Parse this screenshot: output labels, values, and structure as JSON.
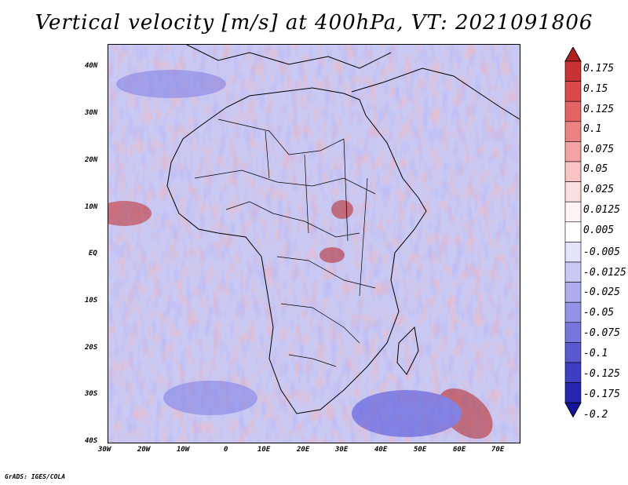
{
  "title": "Vertical velocity [m/s] at 400hPa, VT: 2021091806",
  "credit": "GrADS: IGES/COLA",
  "map": {
    "lon_range": [
      -30,
      75
    ],
    "lat_range": [
      -40,
      45
    ],
    "lat_ticks": [
      "40N",
      "30N",
      "20N",
      "10N",
      "EQ",
      "10S",
      "20S",
      "30S",
      "40S"
    ],
    "lon_ticks": [
      "30W",
      "20W",
      "10W",
      "0",
      "10E",
      "20E",
      "30E",
      "40E",
      "50E",
      "60E",
      "70E"
    ]
  },
  "colorbar": {
    "labels": [
      "0.175",
      "0.15",
      "0.125",
      "0.1",
      "0.075",
      "0.05",
      "0.025",
      "0.0125",
      "0.005",
      "-0.005",
      "-0.0125",
      "-0.025",
      "-0.05",
      "-0.075",
      "-0.1",
      "-0.125",
      "-0.175",
      "-0.2"
    ],
    "colors": [
      "#b21f1f",
      "#c73333",
      "#d94949",
      "#e46464",
      "#ec8282",
      "#f2a3a3",
      "#f7c3c3",
      "#fbdede",
      "#fff3f3",
      "#ffffff",
      "#e3e3fb",
      "#c9c9f5",
      "#adadee",
      "#9292e6",
      "#7676dc",
      "#5a5ad0",
      "#3e3ec3",
      "#2626b0",
      "#1414a0"
    ]
  }
}
